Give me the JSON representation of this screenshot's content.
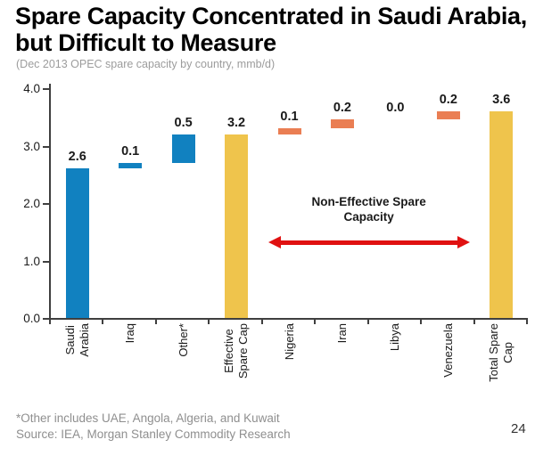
{
  "slide": {
    "title": "Spare Capacity Concentrated in Saudi Arabia, but Difficult to Measure",
    "subtitle": "(Dec 2013 OPEC spare capacity by country, mmb/d)",
    "footnote": "*Other includes UAE, Angola, Algeria, and Kuwait",
    "source": "Source: IEA, Morgan Stanley Commodity Research",
    "page_number": "24"
  },
  "chart_data": {
    "type": "bar",
    "variant": "waterfall",
    "title": "Spare Capacity Concentrated in Saudi Arabia, but Difficult to Measure",
    "subtitle": "(Dec 2013 OPEC spare capacity by country, mmb/d)",
    "xlabel": "",
    "ylabel": "",
    "ylim": [
      0.0,
      4.0
    ],
    "ytick_labels": [
      "0.0",
      "1.0",
      "2.0",
      "3.0",
      "4.0"
    ],
    "grid": false,
    "legend": null,
    "categories": [
      "Saudi Arabia",
      "Iraq",
      "Other*",
      "Effective Spare Cap",
      "Nigeria",
      "Iran",
      "Libya",
      "Venezuela",
      "Total Spare Cap"
    ],
    "bars": [
      {
        "category": "Saudi Arabia",
        "label_lines": [
          "Saudi",
          "Arabia"
        ],
        "value": 2.6,
        "value_label": "2.6",
        "start": 0.0,
        "end": 2.6,
        "color_key": "blue"
      },
      {
        "category": "Iraq",
        "label_lines": [
          "Iraq"
        ],
        "value": 0.1,
        "value_label": "0.1",
        "start": 2.6,
        "end": 2.7,
        "color_key": "blue"
      },
      {
        "category": "Other*",
        "label_lines": [
          "Other*"
        ],
        "value": 0.5,
        "value_label": "0.5",
        "start": 2.7,
        "end": 3.2,
        "color_key": "blue"
      },
      {
        "category": "Effective Spare Cap",
        "label_lines": [
          "Effective",
          "Spare Cap"
        ],
        "value": 3.2,
        "value_label": "3.2",
        "start": 0.0,
        "end": 3.2,
        "color_key": "yellow"
      },
      {
        "category": "Nigeria",
        "label_lines": [
          "Nigeria"
        ],
        "value": 0.1,
        "value_label": "0.1",
        "start": 3.2,
        "end": 3.3,
        "color_key": "orange"
      },
      {
        "category": "Iran",
        "label_lines": [
          "Iran"
        ],
        "value": 0.2,
        "value_label": "0.2",
        "start": 3.3,
        "end": 3.45,
        "color_key": "orange"
      },
      {
        "category": "Libya",
        "label_lines": [
          "Libya"
        ],
        "value": 0.0,
        "value_label": "0.0",
        "start": 3.45,
        "end": 3.45,
        "color_key": "orange"
      },
      {
        "category": "Venezuela",
        "label_lines": [
          "Venezuela"
        ],
        "value": 0.2,
        "value_label": "0.2",
        "start": 3.45,
        "end": 3.6,
        "color_key": "orange"
      },
      {
        "category": "Total Spare Cap",
        "label_lines": [
          "Total Spare",
          "Cap"
        ],
        "value": 3.6,
        "value_label": "3.6",
        "start": 0.0,
        "end": 3.6,
        "color_key": "yellow"
      }
    ],
    "annotation": {
      "lines": [
        "Non-Effective Spare",
        "Capacity"
      ],
      "arrow": {
        "from_category": "Nigeria",
        "to_category": "Venezuela"
      }
    },
    "colors": {
      "blue": "#1181c0",
      "yellow": "#efc44c",
      "orange": "#ea7e53",
      "arrow_red": "#e01111",
      "axis": "#3f3f3f"
    }
  }
}
